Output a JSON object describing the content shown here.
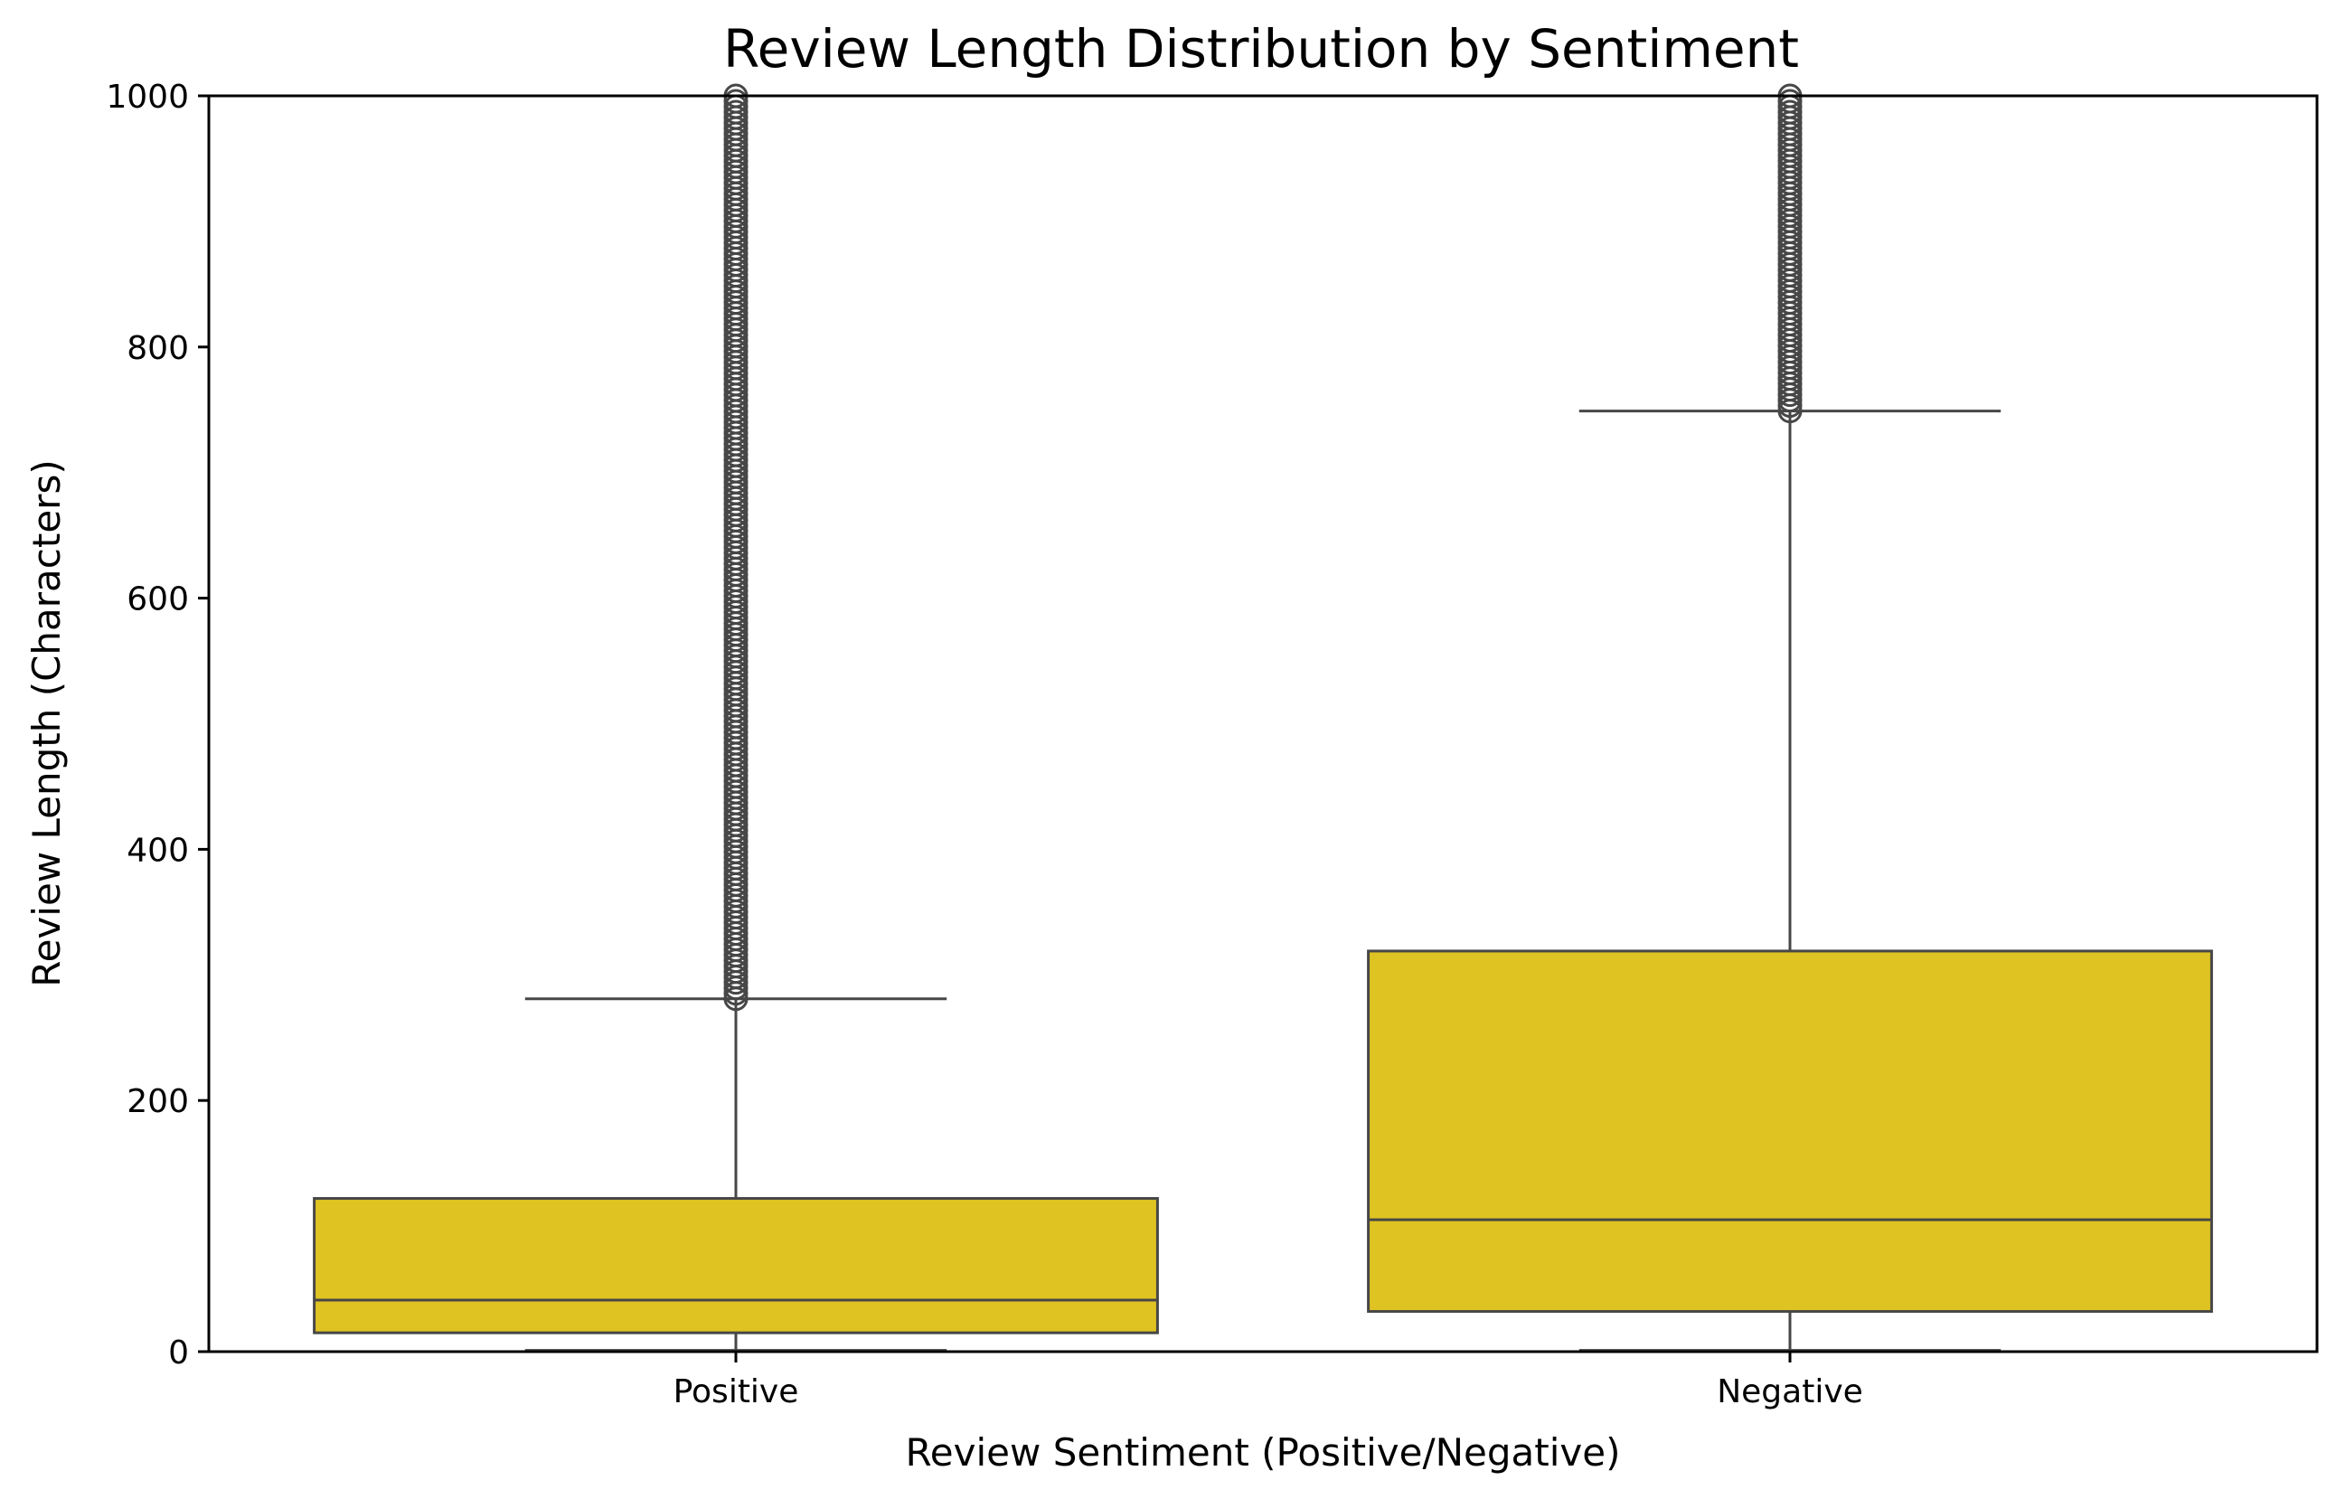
{
  "chart_data": {
    "type": "box",
    "title": "Review Length Distribution by Sentiment",
    "xlabel": "Review Sentiment (Positive/Negative)",
    "ylabel": "Review Length (Characters)",
    "ylim": [
      0,
      1000
    ],
    "yticks": [
      "0",
      "200",
      "400",
      "600",
      "800",
      "1000"
    ],
    "grid": false,
    "colors": {
      "box_fill": "#DFC322",
      "line": "#474747",
      "outlier": "#474747"
    },
    "categories": [
      "Positive",
      "Negative"
    ],
    "boxes": [
      {
        "category": "Positive",
        "whisker_low": 1,
        "q1": 15,
        "median": 41,
        "q3": 122,
        "whisker_high": 281,
        "outliers_range": [
          281,
          1000
        ],
        "outliers_dense": true
      },
      {
        "category": "Negative",
        "whisker_low": 1,
        "q1": 32,
        "median": 105,
        "q3": 319,
        "whisker_high": 749,
        "outliers_range": [
          749,
          1000
        ],
        "outliers_dense": true
      }
    ]
  }
}
